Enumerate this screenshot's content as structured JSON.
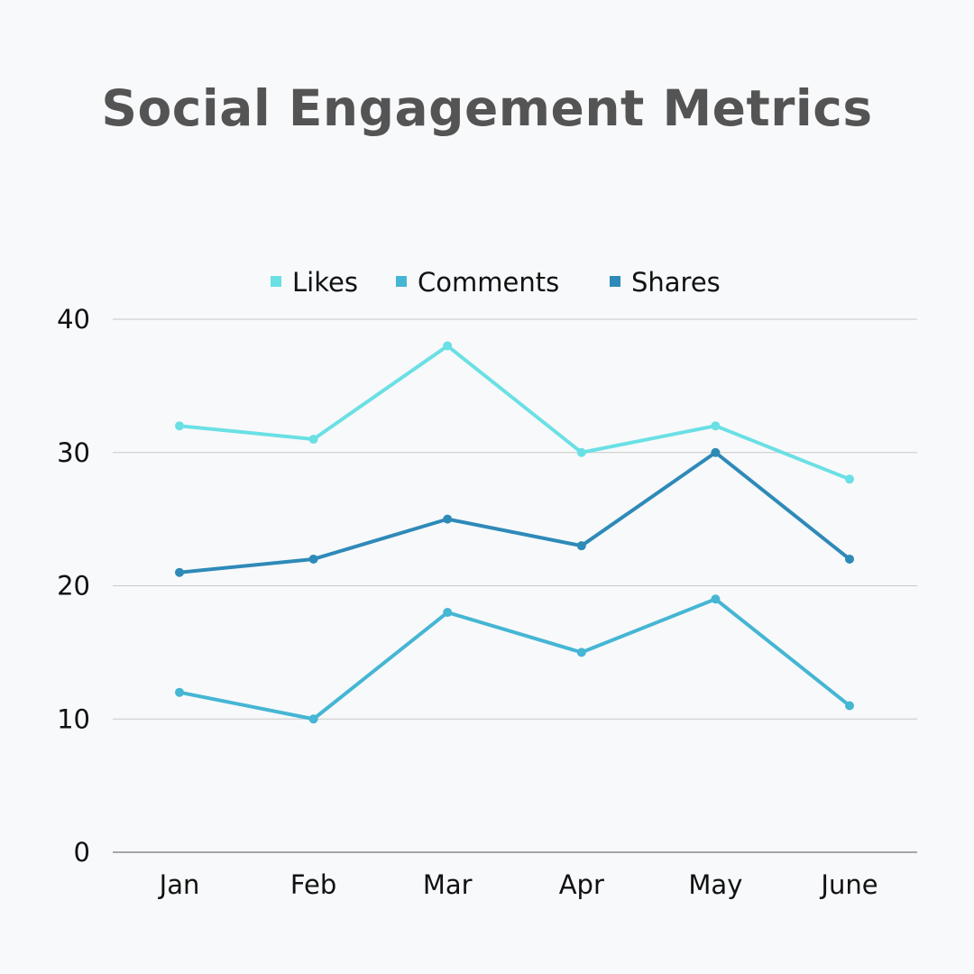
{
  "chart_data": {
    "type": "line",
    "title": "Social Engagement Metrics",
    "categories": [
      "Jan",
      "Feb",
      "Mar",
      "Apr",
      "May",
      "June"
    ],
    "series": [
      {
        "name": "Likes",
        "color": "#6ae0e4",
        "values": [
          32,
          31,
          38,
          30,
          32,
          28
        ]
      },
      {
        "name": "Comments",
        "color": "#45b6d4",
        "values": [
          12,
          10,
          18,
          15,
          19,
          11
        ]
      },
      {
        "name": "Shares",
        "color": "#2e8ab8",
        "values": [
          21,
          22,
          25,
          23,
          30,
          22
        ]
      }
    ],
    "yticks": [
      0,
      10,
      20,
      30,
      40
    ],
    "ylim": [
      0,
      40
    ],
    "xlabel": "",
    "ylabel": "",
    "grid": true,
    "legend": "top-center"
  }
}
